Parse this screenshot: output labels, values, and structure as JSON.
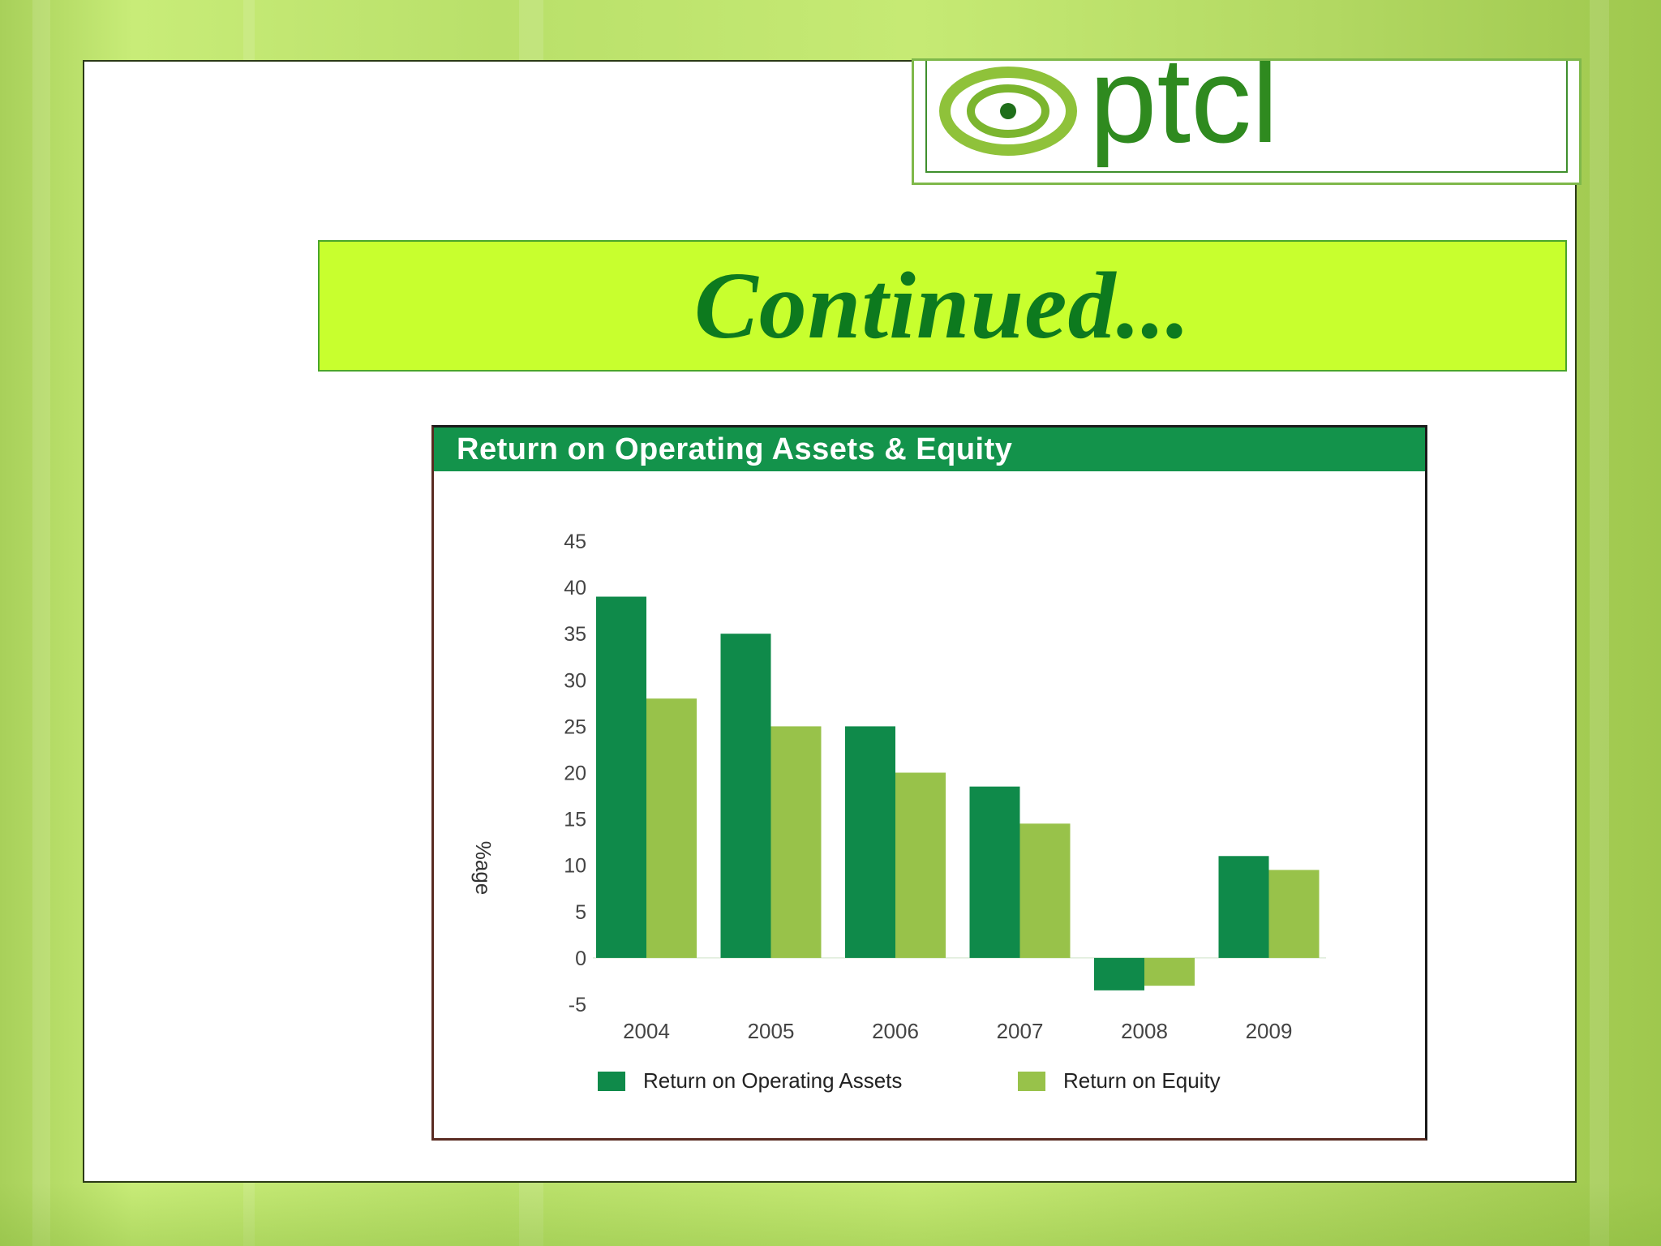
{
  "logo": {
    "text": "ptcl"
  },
  "slide": {
    "title": "Continued..."
  },
  "colors": {
    "background": "#b9e06a",
    "title_bar": "#c8ff2e",
    "title_text": "#0d7a1e",
    "chart_header": "#13934b",
    "operating_assets": "#0f8a4a",
    "equity": "#98c24a"
  },
  "chart_data": {
    "type": "bar",
    "title": "Return on Operating Assets & Equity",
    "ylabel": "%age",
    "xlabel": "",
    "categories": [
      "2004",
      "2005",
      "2006",
      "2007",
      "2008",
      "2009"
    ],
    "series": [
      {
        "name": "Return on Operating Assets",
        "values": [
          39,
          35,
          25,
          18.5,
          -3.5,
          11
        ]
      },
      {
        "name": "Return on Equity",
        "values": [
          28,
          25,
          20,
          14.5,
          -3,
          9.5
        ]
      }
    ],
    "ylim": [
      -5,
      45
    ],
    "yticks": [
      "45",
      "40",
      "35",
      "30",
      "25",
      "20",
      "15",
      "10",
      "5",
      "0",
      "-5"
    ],
    "legend": "bottom",
    "grid": false
  }
}
